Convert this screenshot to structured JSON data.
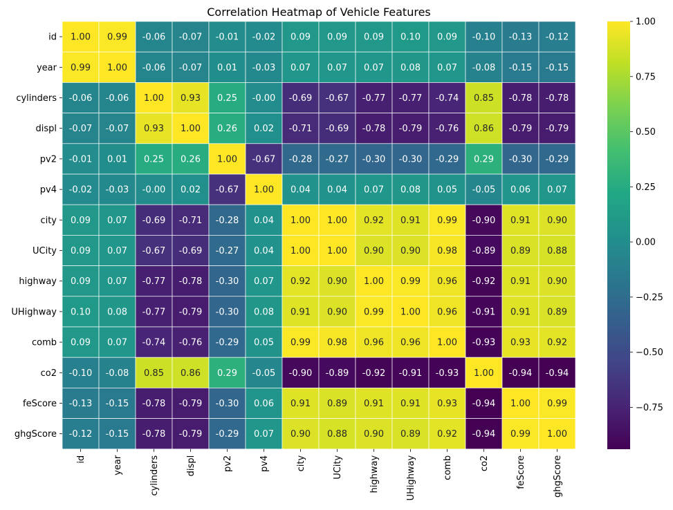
{
  "chart_data": {
    "type": "heatmap",
    "title": "Correlation Heatmap of Vehicle Features",
    "colormap": "viridis",
    "vmin": -0.94,
    "vmax": 1.0,
    "labels": [
      "id",
      "year",
      "cylinders",
      "displ",
      "pv2",
      "pv4",
      "city",
      "UCity",
      "highway",
      "UHighway",
      "comb",
      "co2",
      "feScore",
      "ghgScore"
    ],
    "values": [
      [
        1.0,
        0.99,
        -0.06,
        -0.07,
        -0.01,
        -0.02,
        0.09,
        0.09,
        0.09,
        0.1,
        0.09,
        -0.1,
        -0.13,
        -0.12
      ],
      [
        0.99,
        1.0,
        -0.06,
        -0.07,
        0.01,
        -0.03,
        0.07,
        0.07,
        0.07,
        0.08,
        0.07,
        -0.08,
        -0.15,
        -0.15
      ],
      [
        -0.06,
        -0.06,
        1.0,
        0.93,
        0.25,
        -0.0,
        -0.69,
        -0.67,
        -0.77,
        -0.77,
        -0.74,
        0.85,
        -0.78,
        -0.78
      ],
      [
        -0.07,
        -0.07,
        0.93,
        1.0,
        0.26,
        0.02,
        -0.71,
        -0.69,
        -0.78,
        -0.79,
        -0.76,
        0.86,
        -0.79,
        -0.79
      ],
      [
        -0.01,
        0.01,
        0.25,
        0.26,
        1.0,
        -0.67,
        -0.28,
        -0.27,
        -0.3,
        -0.3,
        -0.29,
        0.29,
        -0.3,
        -0.29
      ],
      [
        -0.02,
        -0.03,
        -0.0,
        0.02,
        -0.67,
        1.0,
        0.04,
        0.04,
        0.07,
        0.08,
        0.05,
        -0.05,
        0.06,
        0.07
      ],
      [
        0.09,
        0.07,
        -0.69,
        -0.71,
        -0.28,
        0.04,
        1.0,
        1.0,
        0.92,
        0.91,
        0.99,
        -0.9,
        0.91,
        0.9
      ],
      [
        0.09,
        0.07,
        -0.67,
        -0.69,
        -0.27,
        0.04,
        1.0,
        1.0,
        0.9,
        0.9,
        0.98,
        -0.89,
        0.89,
        0.88
      ],
      [
        0.09,
        0.07,
        -0.77,
        -0.78,
        -0.3,
        0.07,
        0.92,
        0.9,
        1.0,
        0.99,
        0.96,
        -0.92,
        0.91,
        0.9
      ],
      [
        0.1,
        0.08,
        -0.77,
        -0.79,
        -0.3,
        0.08,
        0.91,
        0.9,
        0.99,
        1.0,
        0.96,
        -0.91,
        0.91,
        0.89
      ],
      [
        0.09,
        0.07,
        -0.74,
        -0.76,
        -0.29,
        0.05,
        0.99,
        0.98,
        0.96,
        0.96,
        1.0,
        -0.93,
        0.93,
        0.92
      ],
      [
        -0.1,
        -0.08,
        0.85,
        0.86,
        0.29,
        -0.05,
        -0.9,
        -0.89,
        -0.92,
        -0.91,
        -0.93,
        1.0,
        -0.94,
        -0.94
      ],
      [
        -0.13,
        -0.15,
        -0.78,
        -0.79,
        -0.3,
        0.06,
        0.91,
        0.89,
        0.91,
        0.91,
        0.93,
        -0.94,
        1.0,
        0.99
      ],
      [
        -0.12,
        -0.15,
        -0.78,
        -0.79,
        -0.29,
        0.07,
        0.9,
        0.88,
        0.9,
        0.89,
        0.92,
        -0.94,
        0.99,
        1.0
      ]
    ],
    "colorbar": {
      "ticks": [
        1.0,
        0.75,
        0.5,
        0.25,
        0.0,
        -0.25,
        -0.5,
        -0.75
      ],
      "tick_labels": [
        "1.00",
        "0.75",
        "0.50",
        "0.25",
        "0.00",
        "−0.25",
        "−0.50",
        "−0.75"
      ]
    },
    "annotations": "cell values shown with 2 decimals",
    "grid": "white cell borders",
    "x_tick_rotation": "vertical"
  }
}
